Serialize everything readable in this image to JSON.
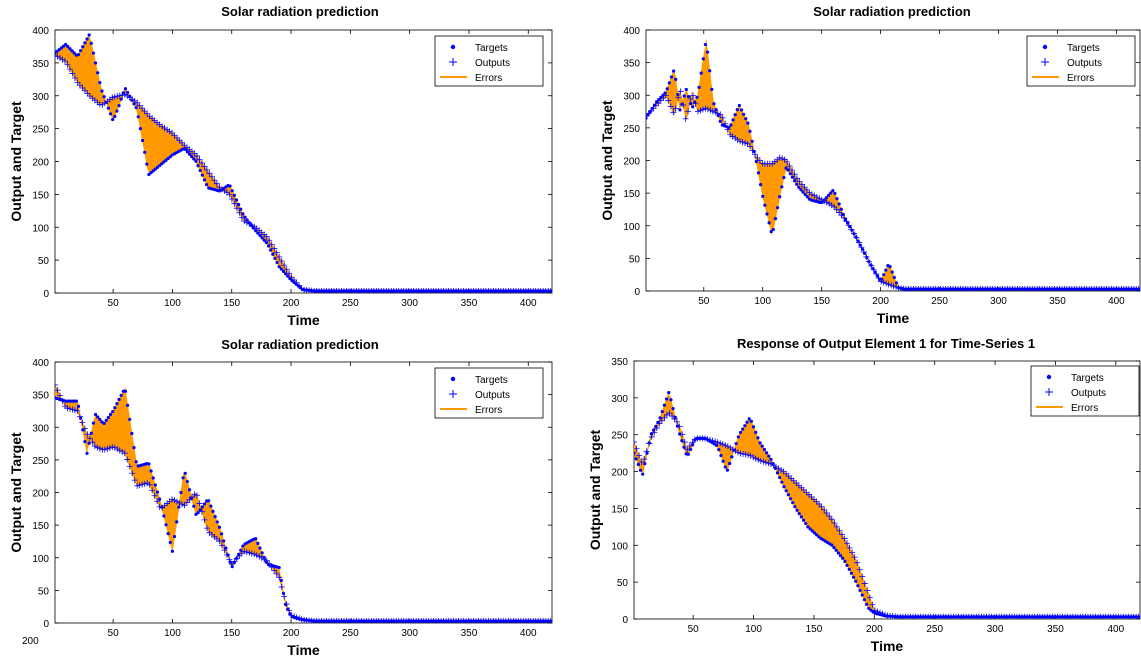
{
  "colors": {
    "targets": "#0000ff",
    "outputs": "#0000ff",
    "errors": "#ff9900"
  },
  "legend_labels": [
    "Targets",
    "Outputs",
    "Errors"
  ],
  "stray_label": "200",
  "chart_data": [
    {
      "type": "line",
      "title": "Solar radiation prediction",
      "xlabel": "Time",
      "ylabel": "Output and Target",
      "xlim": [
        1,
        420
      ],
      "ylim": [
        0,
        400
      ],
      "xticks": [
        50,
        100,
        150,
        200,
        250,
        300,
        350,
        400
      ],
      "yticks": [
        0,
        50,
        100,
        150,
        200,
        250,
        300,
        350,
        400
      ],
      "legend": "top-right",
      "series": [
        {
          "name": "Targets",
          "x": [
            1,
            10,
            20,
            30,
            40,
            50,
            55,
            60,
            70,
            80,
            90,
            100,
            110,
            120,
            130,
            140,
            148,
            160,
            170,
            180,
            190,
            200,
            210,
            220,
            420
          ],
          "y": [
            365,
            378,
            360,
            393,
            310,
            262,
            285,
            312,
            280,
            180,
            195,
            210,
            220,
            200,
            160,
            155,
            165,
            118,
            95,
            75,
            40,
            20,
            5,
            3,
            3
          ]
        },
        {
          "name": "Outputs",
          "x": [
            1,
            10,
            20,
            30,
            40,
            50,
            60,
            70,
            80,
            90,
            100,
            110,
            120,
            130,
            140,
            148,
            160,
            170,
            180,
            190,
            200,
            210,
            220,
            420
          ],
          "y": [
            362,
            352,
            320,
            300,
            285,
            298,
            302,
            290,
            270,
            255,
            243,
            225,
            210,
            185,
            160,
            150,
            110,
            100,
            85,
            55,
            25,
            5,
            3,
            3
          ]
        }
      ]
    },
    {
      "type": "line",
      "title": "Solar radiation prediction",
      "xlabel": "Time",
      "ylabel": "Output and Target",
      "xlim": [
        1,
        420
      ],
      "ylim": [
        0,
        400
      ],
      "xticks": [
        50,
        100,
        150,
        200,
        250,
        300,
        350,
        400
      ],
      "yticks": [
        0,
        50,
        100,
        150,
        200,
        250,
        300,
        350,
        400
      ],
      "legend": "top-right",
      "series": [
        {
          "name": "Targets",
          "x": [
            1,
            10,
            18,
            25,
            30,
            35,
            40,
            45,
            52,
            58,
            65,
            72,
            80,
            88,
            95,
            100,
            108,
            115,
            120,
            130,
            140,
            150,
            160,
            170,
            180,
            190,
            200,
            207,
            215,
            220,
            420
          ],
          "y": [
            265,
            290,
            305,
            340,
            275,
            310,
            280,
            300,
            385,
            290,
            255,
            250,
            285,
            255,
            195,
            145,
            85,
            150,
            190,
            160,
            140,
            135,
            155,
            110,
            80,
            45,
            15,
            42,
            5,
            3,
            3
          ]
        },
        {
          "name": "Outputs",
          "x": [
            1,
            10,
            18,
            25,
            30,
            35,
            40,
            45,
            52,
            58,
            65,
            72,
            80,
            88,
            95,
            100,
            108,
            115,
            120,
            130,
            140,
            150,
            160,
            170,
            180,
            190,
            200,
            207,
            215,
            220,
            420
          ],
          "y": [
            268,
            285,
            300,
            270,
            310,
            260,
            305,
            275,
            280,
            275,
            270,
            240,
            230,
            225,
            205,
            195,
            195,
            205,
            200,
            170,
            150,
            140,
            130,
            110,
            80,
            45,
            15,
            10,
            5,
            3,
            3
          ]
        }
      ]
    },
    {
      "type": "line",
      "title": "Solar radiation prediction",
      "xlabel": "Time",
      "ylabel": "Output and Target",
      "xlim": [
        1,
        420
      ],
      "ylim": [
        0,
        400
      ],
      "xticks": [
        50,
        100,
        150,
        200,
        250,
        300,
        350,
        400
      ],
      "yticks": [
        0,
        50,
        100,
        150,
        200,
        250,
        300,
        350,
        400
      ],
      "legend": "top-right",
      "series": [
        {
          "name": "Targets",
          "x": [
            1,
            10,
            20,
            28,
            35,
            42,
            50,
            60,
            70,
            80,
            90,
            100,
            110,
            120,
            130,
            140,
            150,
            160,
            170,
            180,
            190,
            195,
            200,
            210,
            220,
            420
          ],
          "y": [
            345,
            340,
            340,
            260,
            320,
            305,
            325,
            360,
            240,
            245,
            185,
            110,
            235,
            165,
            190,
            145,
            85,
            120,
            130,
            90,
            85,
            30,
            10,
            5,
            3,
            3
          ]
        },
        {
          "name": "Outputs",
          "x": [
            1,
            10,
            20,
            28,
            35,
            42,
            50,
            60,
            70,
            80,
            90,
            100,
            110,
            120,
            130,
            140,
            150,
            160,
            170,
            180,
            190,
            195,
            200,
            210,
            220,
            420
          ],
          "y": [
            365,
            330,
            325,
            290,
            270,
            265,
            270,
            260,
            210,
            215,
            175,
            190,
            180,
            200,
            140,
            125,
            90,
            110,
            105,
            95,
            70,
            35,
            12,
            5,
            3,
            3
          ]
        }
      ]
    },
    {
      "type": "line",
      "title": "Response of Output Element 1 for Time-Series 1",
      "xlabel": "Time",
      "ylabel": "Output and Target",
      "xlim": [
        1,
        420
      ],
      "ylim": [
        0,
        350
      ],
      "xticks": [
        50,
        100,
        150,
        200,
        250,
        300,
        350,
        400
      ],
      "yticks": [
        0,
        50,
        100,
        150,
        200,
        250,
        300,
        350
      ],
      "legend": "top-right",
      "series": [
        {
          "name": "Targets",
          "x": [
            1,
            8,
            15,
            22,
            30,
            38,
            45,
            52,
            60,
            70,
            78,
            88,
            97,
            105,
            115,
            125,
            135,
            145,
            155,
            165,
            175,
            185,
            195,
            200,
            210,
            220,
            420
          ],
          "y": [
            225,
            195,
            250,
            270,
            308,
            255,
            220,
            245,
            245,
            235,
            200,
            250,
            273,
            240,
            215,
            180,
            150,
            125,
            110,
            100,
            80,
            50,
            15,
            8,
            4,
            3,
            3
          ]
        },
        {
          "name": "Outputs",
          "x": [
            1,
            8,
            15,
            22,
            30,
            38,
            45,
            52,
            60,
            70,
            78,
            88,
            97,
            105,
            115,
            125,
            135,
            145,
            155,
            165,
            175,
            185,
            195,
            200,
            210,
            220,
            420
          ],
          "y": [
            240,
            210,
            245,
            265,
            280,
            265,
            230,
            245,
            245,
            240,
            235,
            225,
            222,
            215,
            210,
            200,
            185,
            170,
            155,
            135,
            110,
            80,
            35,
            12,
            5,
            3,
            3
          ]
        }
      ]
    }
  ]
}
